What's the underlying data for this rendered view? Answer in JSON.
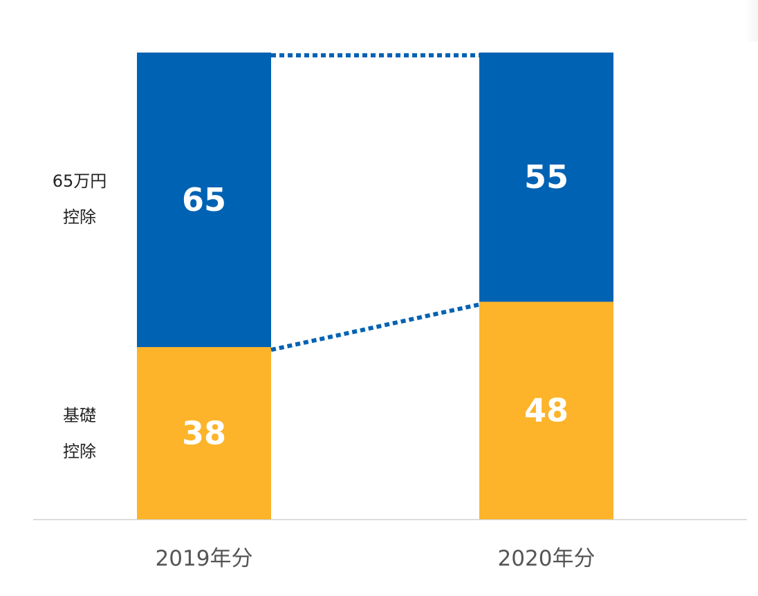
{
  "colors": {
    "deduction_65": "#0062B3",
    "basic_deduction": "#FDB42A",
    "axis_line": "#cfcfcf",
    "bar_text": "#ffffff",
    "category_text": "#555555",
    "side_text": "#222222"
  },
  "side_labels": {
    "top": [
      "65万円",
      "控除"
    ],
    "bottom": [
      "基礎",
      "控除"
    ]
  },
  "chart_data": {
    "type": "bar",
    "stacked": true,
    "categories": [
      "2019年分",
      "2020年分"
    ],
    "series": [
      {
        "name": "基礎控除",
        "values": [
          38,
          48
        ],
        "color": "#FDB42A"
      },
      {
        "name": "65万円控除",
        "values": [
          65,
          55
        ],
        "color": "#0062B3"
      }
    ],
    "ylim": [
      0,
      103
    ],
    "connectors": "dotted",
    "grid": false
  }
}
